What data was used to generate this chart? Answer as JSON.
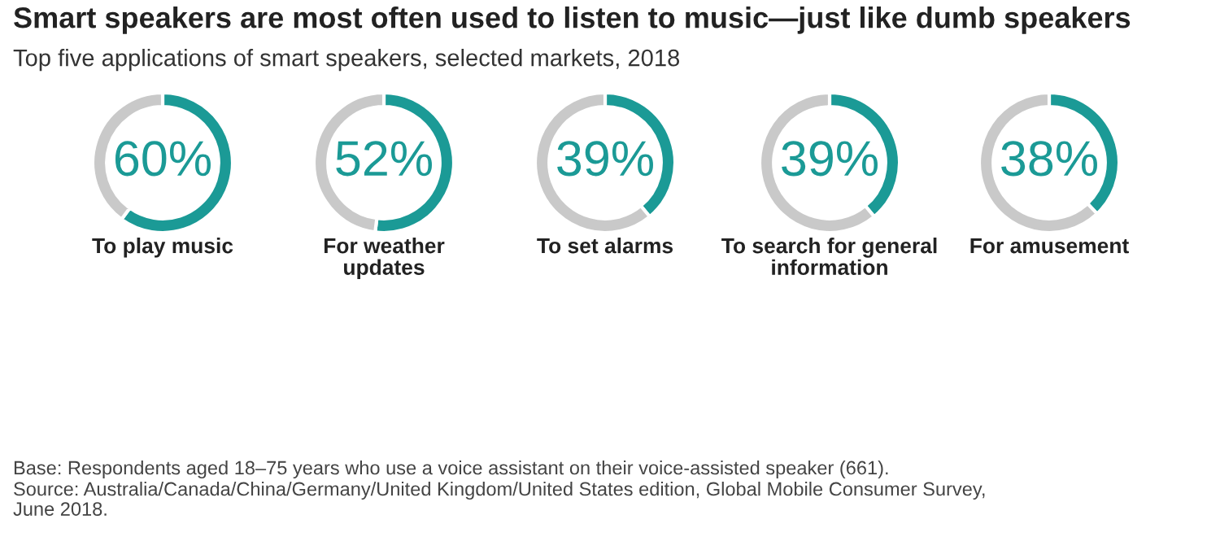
{
  "chart_data": [
    {
      "type": "donut",
      "title": "Smart speakers are most often used to listen to music—just like dumb speakers",
      "subtitle": "Top five applications of smart speakers, selected markets, 2018",
      "xlabel": "To play music",
      "categories": [
        null,
        null
      ],
      "values": [
        60,
        40
      ],
      "colors": [
        "#1b9a96",
        "#c9c9c9"
      ],
      "value_labels": [
        "60%",
        null
      ]
    },
    {
      "type": "donut",
      "xlabel": "For weather\nupdates",
      "categories": [
        null,
        null
      ],
      "values": [
        52,
        48
      ],
      "colors": [
        "#1b9a96",
        "#c9c9c9"
      ],
      "value_labels": [
        "52%",
        null
      ]
    },
    {
      "type": "donut",
      "xlabel": "To set alarms",
      "categories": [
        null,
        null
      ],
      "values": [
        39,
        61
      ],
      "colors": [
        "#1b9a96",
        "#c9c9c9"
      ],
      "value_labels": [
        "39%",
        null
      ]
    },
    {
      "type": "donut",
      "xlabel": "To search for general\ninformation",
      "categories": [
        null,
        null
      ],
      "values": [
        39,
        61
      ],
      "colors": [
        "#1b9a96",
        "#c9c9c9"
      ],
      "value_labels": [
        "39%",
        null
      ]
    },
    {
      "type": "donut",
      "xlabel": "For amusement",
      "categories": [
        null,
        null
      ],
      "values": [
        38,
        62
      ],
      "colors": [
        "#1b9a96",
        "#c9c9c9"
      ],
      "value_labels": [
        "38%",
        null
      ],
      "annotations": [
        "Base: Respondents aged 18–75 years who use a voice assistant on their voice-assisted speaker (661).",
        "Source: Australia/Canada/China/Germany/United Kingdom/United States edition, Global Mobile Consumer Survey,\nJune 2018."
      ]
    }
  ]
}
